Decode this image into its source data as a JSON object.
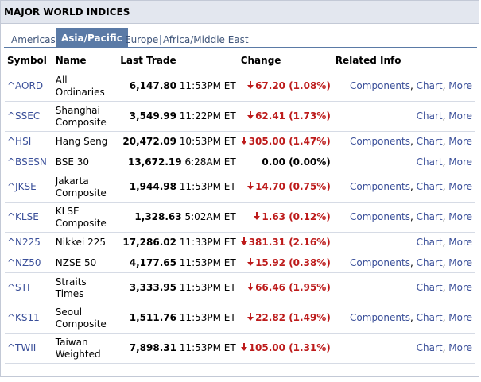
{
  "title": "MAJOR WORLD INDICES",
  "tabs": [
    {
      "label": "Americas",
      "active": false
    },
    {
      "label": "Asia/Pacific",
      "active": true
    },
    {
      "label": "Europe",
      "active": false
    },
    {
      "label": "Africa/Middle East",
      "active": false
    }
  ],
  "headers": {
    "symbol": "Symbol",
    "name": "Name",
    "last_trade": "Last Trade",
    "change": "Change",
    "related": "Related Info"
  },
  "links": {
    "components": "Components",
    "chart": "Chart",
    "more": "More",
    "separator": ","
  },
  "colors": {
    "negative": "#bd1b1b",
    "link": "#3a4f99",
    "tab_active": "#5a7aa6",
    "title_bg": "#e3e7ef"
  },
  "icons": {
    "down": "down-arrow-icon"
  },
  "rows": [
    {
      "symbol": "^AORD",
      "name": "All Ordinaries",
      "value": "6,147.80",
      "time": "11:53PM ET",
      "change": "67.20 (1.08%)",
      "direction": "down",
      "components": true
    },
    {
      "symbol": "^SSEC",
      "name": "Shanghai Composite",
      "value": "3,549.99",
      "time": "11:22PM ET",
      "change": "62.41 (1.73%)",
      "direction": "down",
      "components": false
    },
    {
      "symbol": "^HSI",
      "name": "Hang Seng",
      "value": "20,472.09",
      "time": "10:53PM ET",
      "change": "305.00 (1.47%)",
      "direction": "down",
      "components": true
    },
    {
      "symbol": "^BSESN",
      "name": "BSE 30",
      "value": "13,672.19",
      "time": "6:28AM ET",
      "change": "0.00 (0.00%)",
      "direction": "flat",
      "components": false
    },
    {
      "symbol": "^JKSE",
      "name": "Jakarta Composite",
      "value": "1,944.98",
      "time": "11:53PM ET",
      "change": "14.70 (0.75%)",
      "direction": "down",
      "components": true
    },
    {
      "symbol": "^KLSE",
      "name": "KLSE Composite",
      "value": "1,328.63",
      "time": "5:02AM ET",
      "change": "1.63 (0.12%)",
      "direction": "down",
      "components": true
    },
    {
      "symbol": "^N225",
      "name": "Nikkei 225",
      "value": "17,286.02",
      "time": "11:33PM ET",
      "change": "381.31 (2.16%)",
      "direction": "down",
      "components": false
    },
    {
      "symbol": "^NZ50",
      "name": "NZSE 50",
      "value": "4,177.65",
      "time": "11:53PM ET",
      "change": "15.92 (0.38%)",
      "direction": "down",
      "components": true
    },
    {
      "symbol": "^STI",
      "name": "Straits Times",
      "value": "3,333.95",
      "time": "11:53PM ET",
      "change": "66.46 (1.95%)",
      "direction": "down",
      "components": false
    },
    {
      "symbol": "^KS11",
      "name": "Seoul Composite",
      "value": "1,511.76",
      "time": "11:53PM ET",
      "change": "22.82 (1.49%)",
      "direction": "down",
      "components": true
    },
    {
      "symbol": "^TWII",
      "name": "Taiwan Weighted",
      "value": "7,898.31",
      "time": "11:53PM ET",
      "change": "105.00 (1.31%)",
      "direction": "down",
      "components": false
    }
  ]
}
